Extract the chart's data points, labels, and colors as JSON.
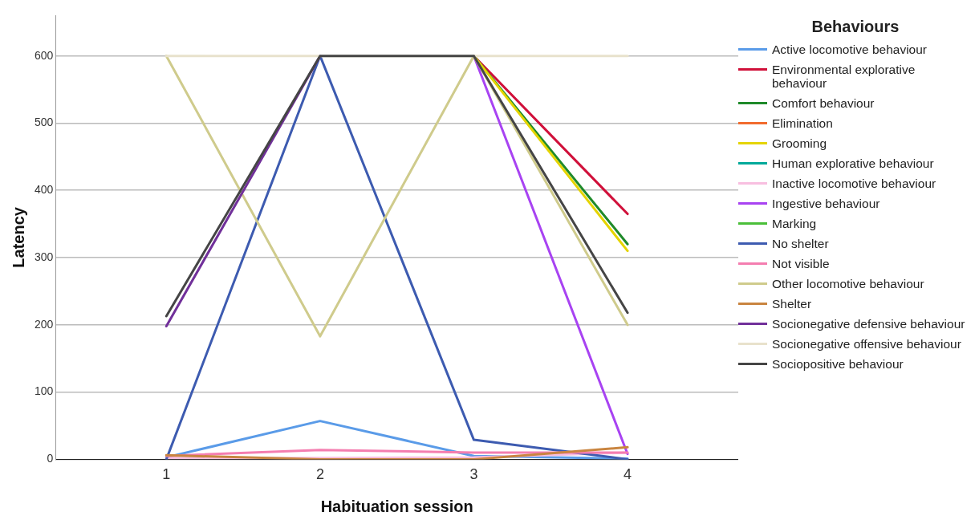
{
  "chart_data": {
    "type": "line",
    "xlabel": "Habituation session",
    "ylabel": "Latency",
    "legend_title": "Behaviours",
    "legend": "right",
    "grid": "y",
    "marker": "none",
    "line_style": "solid",
    "x": [
      1,
      2,
      3,
      4
    ],
    "xlim": [
      0.28,
      4.72
    ],
    "xticks": [
      1,
      2,
      3,
      4
    ],
    "ylim": [
      0,
      660
    ],
    "yticks": [
      0,
      100,
      200,
      300,
      400,
      500,
      600
    ],
    "series": [
      {
        "name": "Active locomotive behaviour",
        "color": "#5a9be8",
        "values": [
          3,
          57,
          5,
          1
        ]
      },
      {
        "name": "Environmental explorative behaviour",
        "color": "#d0103a",
        "values": [
          null,
          null,
          600,
          365
        ]
      },
      {
        "name": "Comfort behaviour",
        "color": "#1f8a2a",
        "values": [
          null,
          null,
          600,
          320
        ]
      },
      {
        "name": "Elimination",
        "color": "#f26b2e",
        "values": [
          null,
          null,
          null,
          null
        ]
      },
      {
        "name": "Grooming",
        "color": "#e5d400",
        "values": [
          null,
          null,
          600,
          310
        ]
      },
      {
        "name": "Human explorative behaviour",
        "color": "#00a99a",
        "values": [
          null,
          null,
          null,
          null
        ]
      },
      {
        "name": "Inactive locomotive behaviour",
        "color": "#f8bfe0",
        "values": [
          2,
          2,
          3,
          10
        ]
      },
      {
        "name": "Ingestive behaviour",
        "color": "#a843f2",
        "values": [
          null,
          null,
          600,
          8
        ]
      },
      {
        "name": "Marking",
        "color": "#4bbf3a",
        "values": [
          null,
          null,
          null,
          null
        ]
      },
      {
        "name": "No shelter",
        "color": "#3d5bb0",
        "values": [
          0,
          600,
          29,
          0
        ]
      },
      {
        "name": "Not visible",
        "color": "#f47eb0",
        "values": [
          5,
          14,
          10,
          10
        ]
      },
      {
        "name": "Other locomotive behaviour",
        "color": "#cfcb8c",
        "values": [
          600,
          183,
          600,
          200
        ]
      },
      {
        "name": "Shelter",
        "color": "#c98540",
        "values": [
          6,
          0,
          0,
          18
        ]
      },
      {
        "name": "Socionegative defensive behaviour",
        "color": "#71309a",
        "values": [
          198,
          600,
          null,
          null
        ]
      },
      {
        "name": "Socionegative offensive behaviour",
        "color": "#e8e2cc",
        "values": [
          600,
          600,
          600,
          600
        ]
      },
      {
        "name": "Sociopositive behaviour",
        "color": "#454545",
        "values": [
          213,
          600,
          600,
          218
        ]
      }
    ]
  }
}
